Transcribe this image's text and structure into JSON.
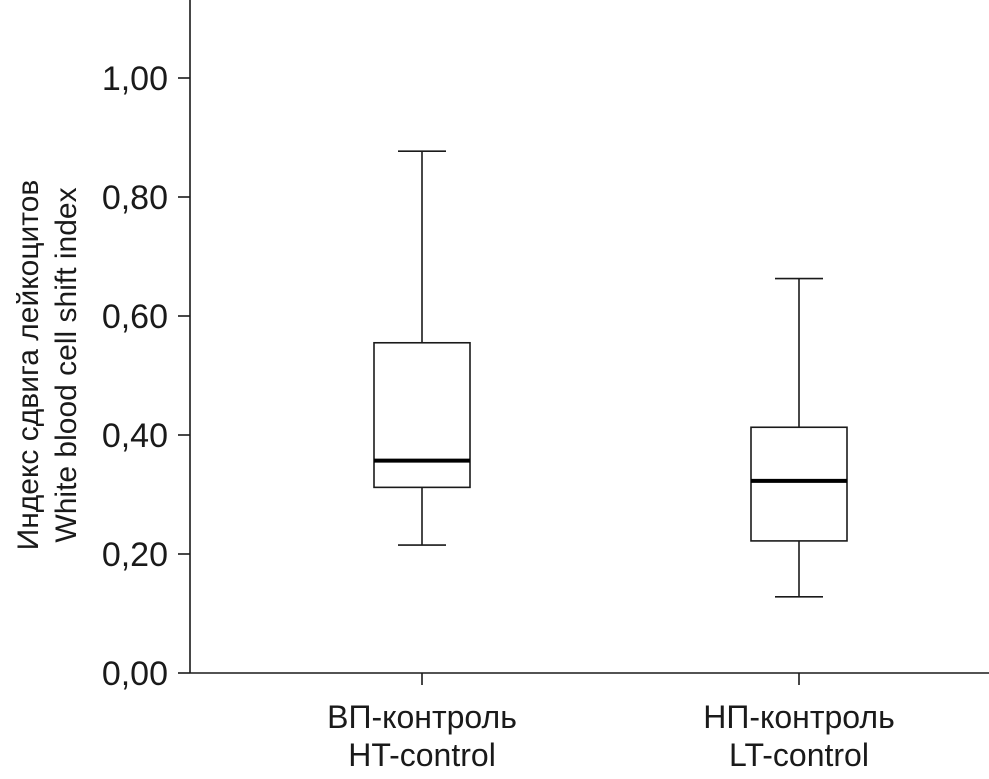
{
  "chart_data": {
    "type": "box",
    "ylabel_lines": [
      "Индекс сдвига лейкоцитов",
      "White blood cell shift index"
    ],
    "ylim": [
      0,
      1.1
    ],
    "yticks": [
      0,
      0.2,
      0.4,
      0.6,
      0.8,
      1.0
    ],
    "ytick_labels": [
      "0,00",
      "0,20",
      "0,40",
      "0,60",
      "0,80",
      "1,00"
    ],
    "categories": [
      {
        "label_lines": [
          "ВП-контроль",
          "HT-control"
        ],
        "min": 0.215,
        "q1": 0.312,
        "median": 0.357,
        "q3": 0.555,
        "max": 0.877
      },
      {
        "label_lines": [
          "НП-контроль",
          "LT-control"
        ],
        "min": 0.128,
        "q1": 0.222,
        "median": 0.323,
        "q3": 0.413,
        "max": 0.663
      }
    ]
  }
}
